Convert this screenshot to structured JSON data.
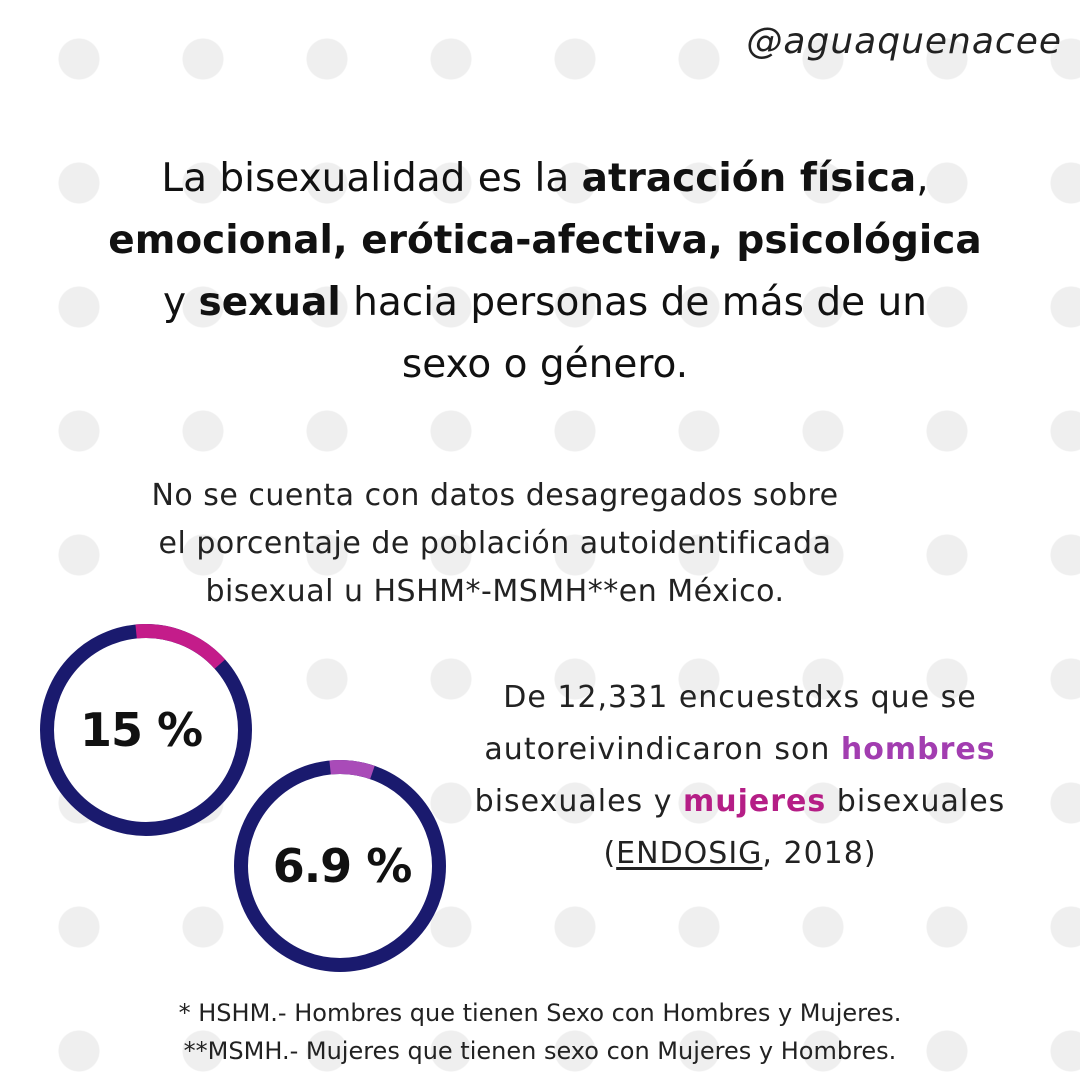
{
  "handle": "@aguaquenacee",
  "definition": {
    "line1_a": "La bisexualidad es la ",
    "line1_b": "atracción física",
    "line1_c": ",",
    "line2_a": "emocional, erótica-afectiva,",
    "line2_b": " psicológica",
    "line3_a": "y ",
    "line3_b": "sexual",
    "line3_c": " hacia personas de más de un",
    "line4": "sexo o género."
  },
  "note": {
    "line1": "No se cuenta con datos desagregados sobre",
    "line2": "el porcentaje de población autoidentificada",
    "line3": "bisexual u HSHM*-MSMH**en México."
  },
  "rings": [
    {
      "label": "15 %",
      "value": 15,
      "track_color": "#1a1a6e",
      "fill_color": "#c41c8a"
    },
    {
      "label": "6.9 %",
      "value": 6.9,
      "track_color": "#1a1a6e",
      "fill_color": "#a94bb8"
    }
  ],
  "stats": {
    "line1": "De 12,331 encuestdxs que se",
    "line2_a": "autoreivindicaron  son ",
    "line2_b": "hombres",
    "line3_a": "bisexuales y ",
    "line3_b": "mujeres",
    "line3_c": " bisexuales",
    "line4_a": "(",
    "line4_b": "ENDOSIG",
    "line4_c": ", 2018)"
  },
  "footnotes": {
    "line1": "* HSHM.- Hombres que tienen Sexo con Hombres y Mujeres.",
    "line2": "**MSMH.- Mujeres que tienen sexo con Mujeres  y  Hombres."
  },
  "colors": {
    "ring_track": "#1a1a6e",
    "men_highlight": "#a23db0",
    "women_highlight": "#b51e86",
    "background_dots": "#efefef"
  }
}
